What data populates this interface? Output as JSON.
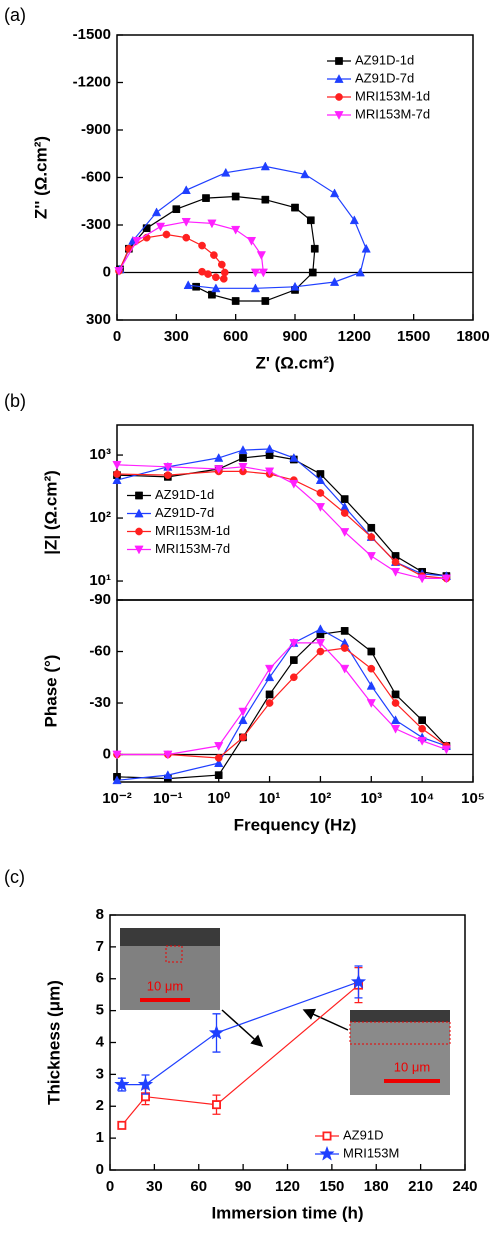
{
  "chart_data": [
    {
      "type": "line",
      "label": "(a)",
      "xlabel": "Z' (Ω.cm²)",
      "ylabel": "Z'' (Ω.cm²)",
      "xlim": [
        0,
        1800
      ],
      "ylim": [
        300,
        -1500
      ],
      "xticks": [
        0,
        300,
        600,
        900,
        1200,
        1500,
        1800
      ],
      "yticks": [
        -1500,
        -1200,
        -900,
        -600,
        -300,
        0,
        300
      ],
      "zero_line": true,
      "legend": "upper right",
      "series": [
        {
          "name": "AZ91D-1d",
          "color": "#000000",
          "marker": "square",
          "x": [
            15,
            60,
            150,
            300,
            450,
            600,
            750,
            900,
            980,
            1000,
            990,
            900,
            750,
            600,
            480,
            400
          ],
          "values": [
            -20,
            -150,
            -280,
            -400,
            -470,
            -480,
            -460,
            -410,
            -330,
            -150,
            0,
            110,
            180,
            180,
            140,
            90
          ]
        },
        {
          "name": "AZ91D-7d",
          "color": "#1f3fff",
          "marker": "triangle",
          "x": [
            15,
            80,
            200,
            350,
            550,
            750,
            950,
            1100,
            1200,
            1260,
            1230,
            1100,
            900,
            700,
            500,
            360
          ],
          "values": [
            -20,
            -200,
            -380,
            -520,
            -630,
            -670,
            -620,
            -500,
            -330,
            -150,
            0,
            60,
            90,
            100,
            100,
            80
          ]
        },
        {
          "name": "MRI153M-1d",
          "color": "#ff2020",
          "marker": "circle",
          "x": [
            10,
            60,
            150,
            250,
            350,
            430,
            490,
            530,
            545,
            540,
            500,
            460,
            430
          ],
          "values": [
            -10,
            -150,
            -220,
            -240,
            -220,
            -170,
            -110,
            -50,
            0,
            40,
            30,
            10,
            -5
          ]
        },
        {
          "name": "MRI153M-7d",
          "color": "#ff20ff",
          "marker": "down",
          "x": [
            10,
            100,
            220,
            350,
            480,
            600,
            680,
            730,
            740,
            700
          ],
          "values": [
            -10,
            -200,
            -290,
            -320,
            -310,
            -270,
            -200,
            -110,
            0,
            0
          ]
        }
      ]
    },
    {
      "type": "line",
      "label": "(b)",
      "ylabel": "|Z| (Ω.cm²)",
      "xlog": true,
      "ylog": true,
      "xlim": [
        0.01,
        100000
      ],
      "ylim": [
        5,
        3000
      ],
      "legend": "center left",
      "yticks": [
        {
          "value": 10,
          "label": "10¹"
        },
        {
          "value": 100,
          "label": "10²"
        },
        {
          "value": 1000,
          "label": "10³"
        }
      ],
      "x": [
        0.01,
        0.1,
        1,
        3,
        10,
        30,
        100,
        300,
        1000,
        3000,
        10000,
        30000
      ],
      "series": [
        {
          "name": "AZ91D-1d",
          "color": "#000000",
          "marker": "square",
          "values": [
            480,
            450,
            600,
            900,
            1000,
            850,
            500,
            200,
            70,
            25,
            14,
            12
          ]
        },
        {
          "name": "AZ91D-7d",
          "color": "#1f3fff",
          "marker": "triangle",
          "values": [
            400,
            650,
            900,
            1200,
            1250,
            900,
            400,
            150,
            50,
            20,
            13,
            12
          ]
        },
        {
          "name": "MRI153M-1d",
          "color": "#ff2020",
          "marker": "circle",
          "values": [
            500,
            480,
            550,
            550,
            500,
            400,
            250,
            120,
            50,
            20,
            12,
            11
          ]
        },
        {
          "name": "MRI153M-7d",
          "color": "#ff20ff",
          "marker": "down",
          "values": [
            700,
            650,
            600,
            650,
            550,
            350,
            150,
            60,
            25,
            14,
            11,
            11
          ]
        }
      ]
    },
    {
      "type": "line",
      "xlabel": "Frequency (Hz)",
      "ylabel": "Phase (°)",
      "xlog": true,
      "xlim": [
        0.01,
        100000
      ],
      "ylim": [
        16,
        -90
      ],
      "yticks": [
        -90,
        -60,
        -30,
        0
      ],
      "zero_line": true,
      "xticks": [
        {
          "value": 0.01,
          "label": "10⁻²"
        },
        {
          "value": 0.1,
          "label": "10⁻¹"
        },
        {
          "value": 1,
          "label": "10⁰"
        },
        {
          "value": 10,
          "label": "10¹"
        },
        {
          "value": 100,
          "label": "10²"
        },
        {
          "value": 1000,
          "label": "10³"
        },
        {
          "value": 10000,
          "label": "10⁴"
        },
        {
          "value": 100000,
          "label": "10⁵"
        }
      ],
      "x": [
        0.01,
        0.1,
        1,
        3,
        10,
        30,
        100,
        300,
        1000,
        3000,
        10000,
        30000
      ],
      "series": [
        {
          "name": "AZ91D-1d",
          "color": "#000000",
          "marker": "square",
          "values": [
            13,
            14,
            12,
            -10,
            -35,
            -55,
            -70,
            -72,
            -60,
            -35,
            -20,
            -5
          ]
        },
        {
          "name": "AZ91D-7d",
          "color": "#1f3fff",
          "marker": "triangle",
          "values": [
            15,
            12,
            5,
            -20,
            -45,
            -65,
            -73,
            -65,
            -40,
            -20,
            -10,
            -5
          ]
        },
        {
          "name": "MRI153M-1d",
          "color": "#ff2020",
          "marker": "circle",
          "values": [
            0,
            0,
            2,
            -10,
            -30,
            -45,
            -60,
            -62,
            -50,
            -30,
            -15,
            -5
          ]
        },
        {
          "name": "MRI153M-7d",
          "color": "#ff20ff",
          "marker": "down",
          "values": [
            0,
            0,
            -5,
            -25,
            -50,
            -65,
            -65,
            -50,
            -30,
            -15,
            -8,
            -3
          ]
        }
      ]
    },
    {
      "type": "line",
      "label": "(c)",
      "xlabel": "Immersion time (h)",
      "ylabel": "Thickness (μm)",
      "xlim": [
        0,
        240
      ],
      "ylim": [
        0,
        8
      ],
      "xticks": [
        0,
        30,
        60,
        90,
        120,
        150,
        180,
        210,
        240
      ],
      "yticks": [
        0,
        1,
        2,
        3,
        4,
        5,
        6,
        7,
        8
      ],
      "legend": "lower right",
      "annotations": [
        "10 μm",
        "10 μm"
      ],
      "x": [
        8,
        24,
        72,
        168
      ],
      "series": [
        {
          "name": "AZ91D",
          "color": "#ff2020",
          "marker": "open-square",
          "values": [
            1.4,
            2.3,
            2.05,
            5.8
          ],
          "errors": [
            0.1,
            0.25,
            0.3,
            0.55
          ]
        },
        {
          "name": "MRI153M",
          "color": "#1f3fff",
          "marker": "star",
          "values": [
            2.68,
            2.68,
            4.3,
            5.9
          ],
          "errors": [
            0.2,
            0.3,
            0.6,
            0.5
          ]
        }
      ]
    }
  ]
}
